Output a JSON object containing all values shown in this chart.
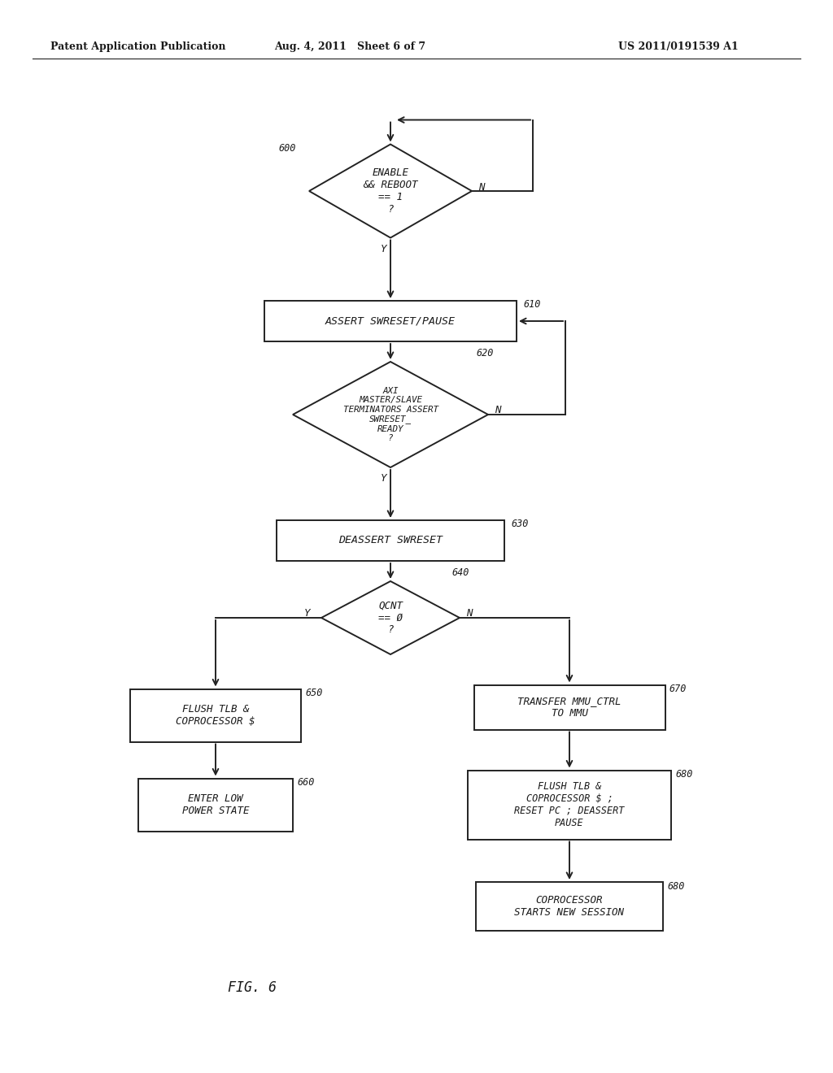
{
  "bg_color": "#ffffff",
  "header_left": "Patent Application Publication",
  "header_mid": "Aug. 4, 2011   Sheet 6 of 7",
  "header_right": "US 2011/0191539 A1",
  "fig_label": "FIG. 6",
  "text_color": "#1a1a1a",
  "line_color": "#222222"
}
